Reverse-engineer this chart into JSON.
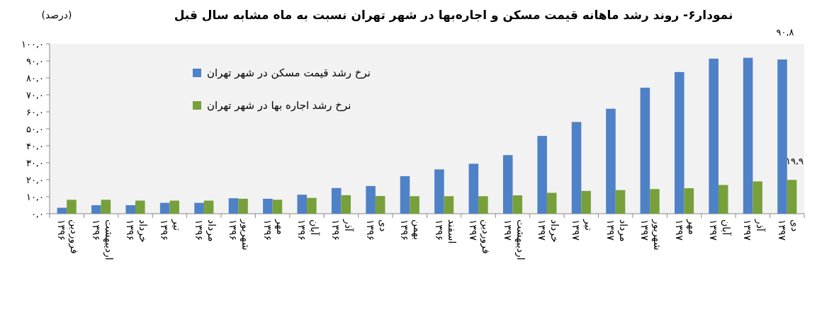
{
  "chart_data": {
    "type": "bar",
    "title": "نمودار۶- روند رشد ماهانه قیمت مسکن و اجاره‌بها در شهر تهران نسبت به ماه مشابه سال قبل",
    "ylabel": "(درصد)",
    "categories": [
      "فروردین ۱۳۹۶",
      "اردیبهشت ۱۳۹۶",
      "خرداد ۱۳۹۶",
      "تیر ۱۳۹۶",
      "مرداد ۱۳۹۶",
      "شهریور ۱۳۹۶",
      "مهر ۱۳۹۶",
      "آبان ۱۳۹۶",
      "آذر ۱۳۹۶",
      "دی ۱۳۹۶",
      "بهمن ۱۳۹۶",
      "اسفند ۱۳۹۶",
      "فروردین ۱۳۹۷",
      "اردیبهشت ۱۳۹۷",
      "خرداد ۱۳۹۷",
      "تیر ۱۳۹۷",
      "مرداد ۱۳۹۷",
      "شهریور ۱۳۹۷",
      "مهر ۱۳۹۷",
      "آبان ۱۳۹۷",
      "آذر ۱۳۹۷",
      "دی ۱۳۹۷"
    ],
    "series": [
      {
        "name": "نرخ رشد قیمت  مسکن در شهر تهران",
        "color": "#4f81c7",
        "values": [
          3.5,
          5.0,
          5.0,
          6.4,
          6.4,
          9.1,
          8.8,
          11.2,
          15.1,
          16.3,
          22.1,
          26.1,
          29.4,
          34.5,
          45.8,
          54.0,
          61.8,
          74.2,
          83.4,
          91.3,
          91.8,
          90.8
        ],
        "value_labels": [
          null,
          null,
          null,
          null,
          null,
          null,
          null,
          null,
          null,
          null,
          null,
          null,
          null,
          null,
          null,
          null,
          null,
          null,
          null,
          null,
          null,
          "۹۰,۸"
        ]
      },
      {
        "name": "نرخ رشد اجاره بها در شهر تهران",
        "color": "#77a03a",
        "values": [
          8.2,
          8.2,
          7.7,
          7.7,
          7.7,
          8.8,
          8.2,
          9.3,
          10.9,
          10.4,
          10.3,
          10.3,
          10.3,
          10.8,
          12.3,
          13.4,
          13.9,
          14.5,
          15.0,
          16.9,
          19.0,
          19.9
        ],
        "value_labels": [
          null,
          null,
          null,
          null,
          null,
          null,
          null,
          null,
          null,
          null,
          null,
          null,
          null,
          null,
          null,
          null,
          null,
          null,
          null,
          null,
          null,
          "۱۹,۹"
        ]
      }
    ],
    "ylim": [
      0,
      100
    ],
    "yticks": [
      {
        "value": 0,
        "label": "۰,۰"
      },
      {
        "value": 10,
        "label": "۱۰,۰"
      },
      {
        "value": 20,
        "label": "۲۰,۰"
      },
      {
        "value": 30,
        "label": "۳۰,۰"
      },
      {
        "value": 40,
        "label": "۴۰,۰"
      },
      {
        "value": 50,
        "label": "۵۰,۰"
      },
      {
        "value": 60,
        "label": "۶۰,۰"
      },
      {
        "value": 70,
        "label": "۷۰,۰"
      },
      {
        "value": 80,
        "label": "۸۰,۰"
      },
      {
        "value": 90,
        "label": "۹۰,۰"
      },
      {
        "value": 100,
        "label": "۱۰۰,۰"
      }
    ],
    "legend": "top left",
    "grid": false
  }
}
